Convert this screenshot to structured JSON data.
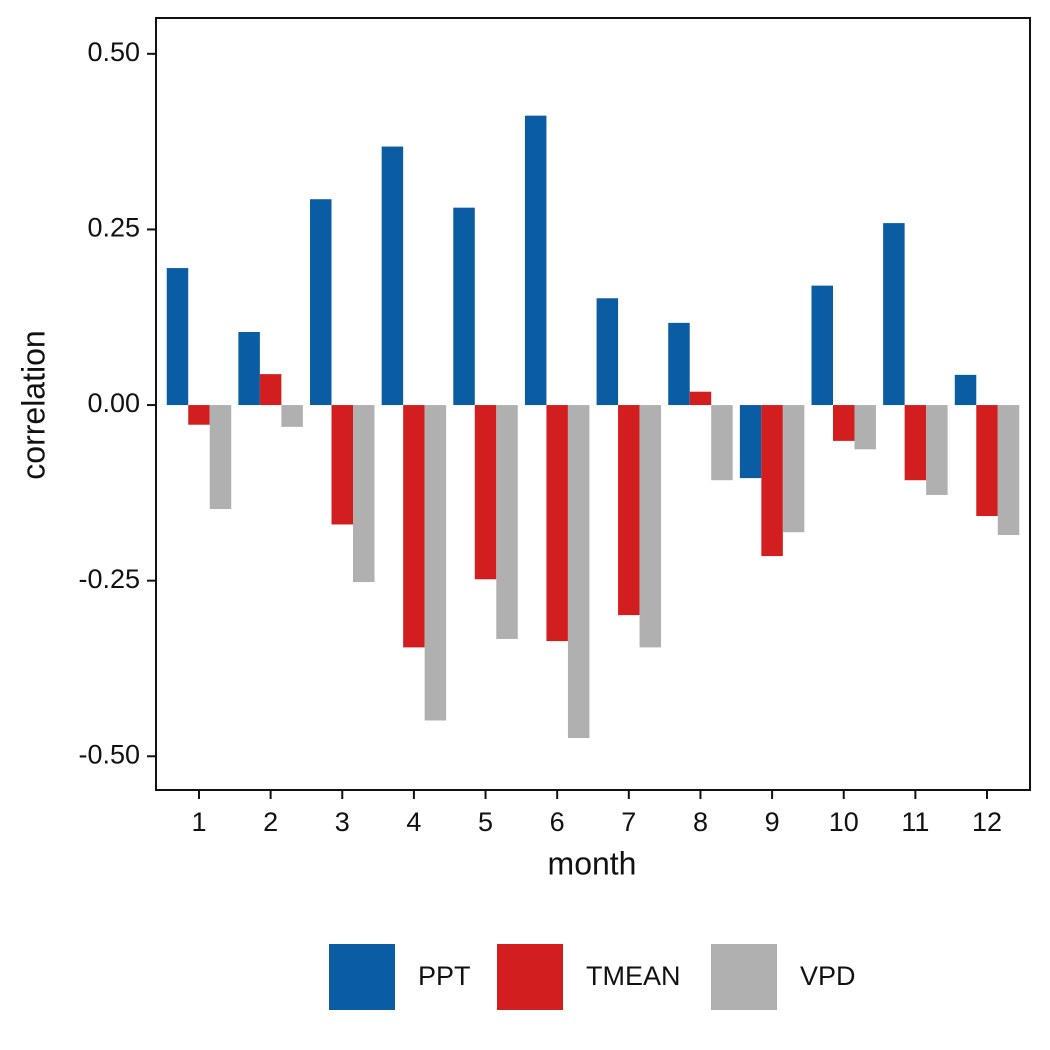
{
  "chart_data": {
    "type": "bar",
    "x_label": "month",
    "y_label": "correlation",
    "categories": [
      "1",
      "2",
      "3",
      "4",
      "5",
      "6",
      "7",
      "8",
      "9",
      "10",
      "11",
      "12"
    ],
    "series": [
      {
        "name": "PPT",
        "color": "#0a5ca3",
        "values": [
          0.195,
          0.104,
          0.293,
          0.368,
          0.281,
          0.412,
          0.152,
          0.117,
          -0.104,
          0.17,
          0.259,
          0.043
        ]
      },
      {
        "name": "TMEAN",
        "color": "#d21e1e",
        "values": [
          -0.028,
          0.044,
          -0.17,
          -0.345,
          -0.248,
          -0.336,
          -0.299,
          0.019,
          -0.215,
          -0.051,
          -0.107,
          -0.158
        ]
      },
      {
        "name": "VPD",
        "color": "#b0b0b0",
        "values": [
          -0.148,
          -0.031,
          -0.252,
          -0.449,
          -0.333,
          -0.474,
          -0.345,
          -0.107,
          -0.181,
          -0.063,
          -0.128,
          -0.185
        ]
      }
    ],
    "ylim": [
      -0.548,
      0.551
    ],
    "yticks": [
      {
        "value": -0.5,
        "label": "-0.50"
      },
      -0.25,
      {
        "value": 0,
        "label": "0.00"
      },
      0.25,
      {
        "value": 0.5,
        "label": "0.50"
      }
    ],
    "grid": false,
    "legend": "bottom"
  }
}
